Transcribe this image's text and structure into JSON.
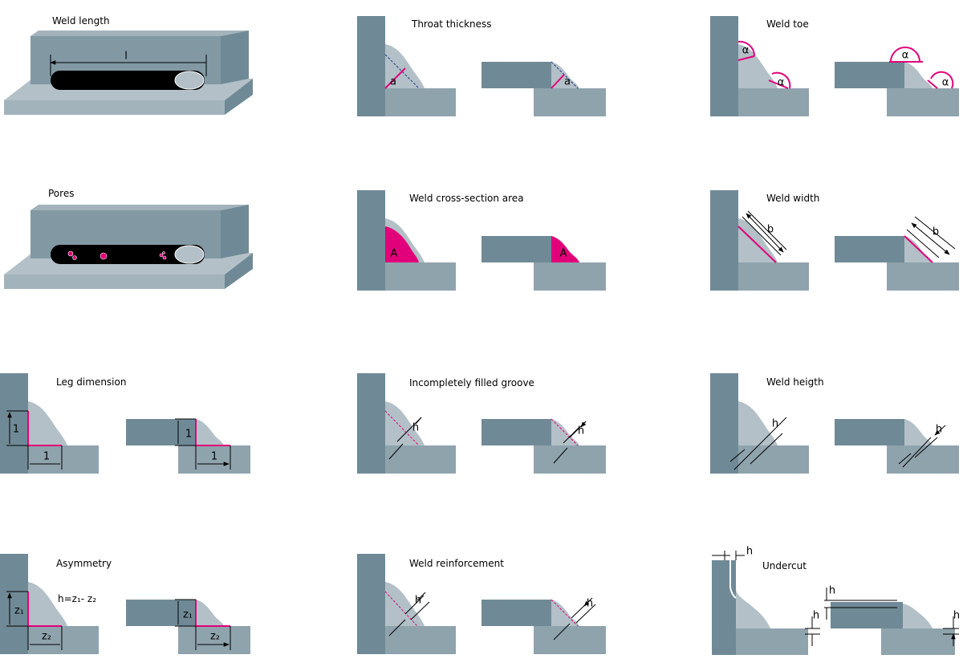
{
  "panels": [
    {
      "title": "Weld length",
      "labels": [
        "l"
      ]
    },
    {
      "title": "Throat thickness",
      "labels": [
        "a",
        "a"
      ]
    },
    {
      "title": "Weld toe",
      "labels": [
        "α",
        "α",
        "α",
        "α"
      ]
    },
    {
      "title": "Pores"
    },
    {
      "title": "Weld cross-section area",
      "labels": [
        "A",
        "A"
      ]
    },
    {
      "title": "Weld width",
      "labels": [
        "b",
        "b"
      ]
    },
    {
      "title": "Leg dimension",
      "labels": [
        "1",
        "1",
        "1",
        "1"
      ]
    },
    {
      "title": "Incompletely filled groove",
      "labels": [
        "h",
        "h"
      ]
    },
    {
      "title": "Weld heigth",
      "labels": [
        "h",
        "h"
      ]
    },
    {
      "title": "Asymmetry",
      "labels": [
        "z₁",
        "z₂",
        "z₁",
        "z₂"
      ],
      "formula": "h=z₁- z₂"
    },
    {
      "title": "Weld reinforcement",
      "labels": [
        "h",
        "h"
      ]
    },
    {
      "title": "Undercut",
      "labels": [
        "h",
        "h",
        "h",
        "h"
      ]
    }
  ]
}
